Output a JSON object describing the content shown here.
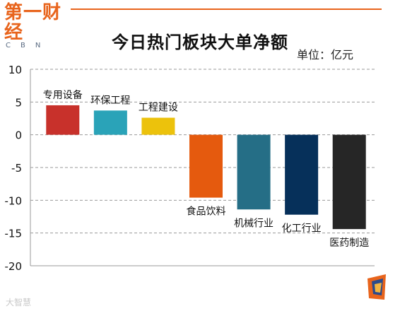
{
  "header": {
    "logo_main": "第一财经",
    "logo_sub": "CBN",
    "watermark": "大智慧"
  },
  "colors": {
    "brand": "#e8641c"
  },
  "chart_data": {
    "type": "bar",
    "title": "今日热门板块大单净额",
    "unit": "单位：亿元",
    "xlabel": "",
    "ylabel": "",
    "ylim": [
      -20,
      10
    ],
    "yticks": [
      10,
      5,
      0,
      -5,
      -10,
      -15,
      -20
    ],
    "grid": true,
    "legend": "none",
    "categories": [
      "专用设备",
      "环保工程",
      "工程建设",
      "食品饮料",
      "机械行业",
      "化工行业",
      "医药制造"
    ],
    "values": [
      4.5,
      3.7,
      2.6,
      -9.6,
      -11.4,
      -12.2,
      -14.4
    ],
    "bar_colors": [
      "#c8312b",
      "#2aa3b8",
      "#ecc20c",
      "#e55a0e",
      "#256e86",
      "#06305a",
      "#262626"
    ]
  }
}
